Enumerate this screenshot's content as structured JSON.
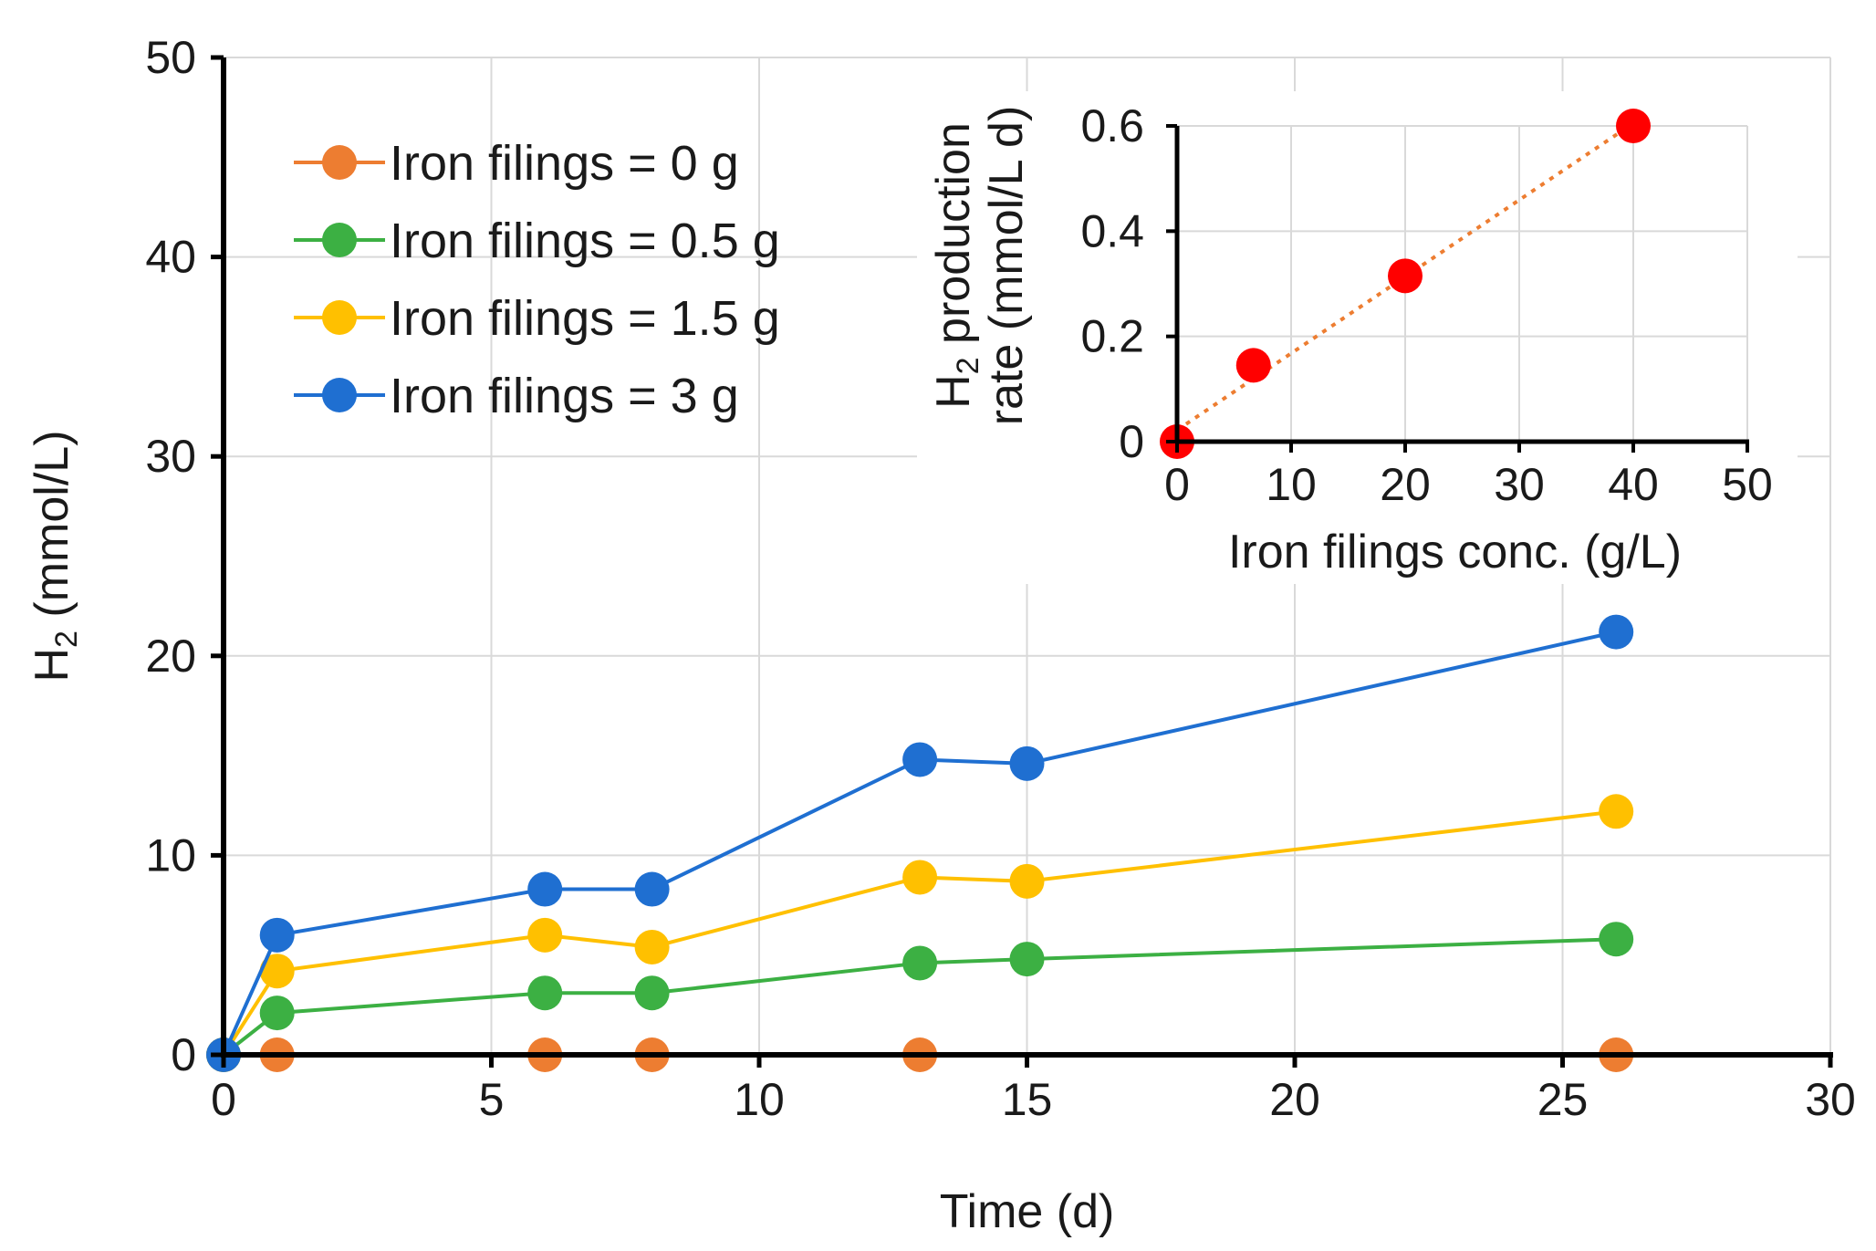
{
  "chart_data": [
    {
      "type": "line",
      "xlabel": "Time (d)",
      "ylabel": {
        "main": "H",
        "sub": "2",
        "rest": " (mmol/L)"
      },
      "xlim": [
        0,
        30
      ],
      "ylim": [
        0,
        50
      ],
      "xticks": [
        "0",
        "5",
        "10",
        "15",
        "20",
        "25",
        "30"
      ],
      "yticks": [
        "0",
        "10",
        "20",
        "30",
        "40",
        "50"
      ],
      "grid": true,
      "legend_position": "top-left",
      "x": [
        0,
        1,
        6,
        8,
        13,
        15,
        26
      ],
      "series": [
        {
          "name": "Iron filings = 0 g",
          "color": "#ED7D31",
          "values": [
            0,
            0,
            0,
            0,
            0,
            null,
            0
          ]
        },
        {
          "name": "Iron filings = 0.5 g",
          "color": "#3CB043",
          "values": [
            0,
            2.1,
            3.1,
            3.1,
            4.6,
            4.8,
            5.8
          ]
        },
        {
          "name": "Iron filings = 1.5 g",
          "color": "#FFC000",
          "values": [
            0,
            4.2,
            6.0,
            5.4,
            8.9,
            8.7,
            12.2
          ]
        },
        {
          "name": "Iron filings = 3 g",
          "color": "#1F6FD1",
          "values": [
            0,
            6.0,
            8.3,
            8.3,
            14.8,
            14.6,
            21.2
          ]
        }
      ]
    },
    {
      "type": "scatter",
      "inset": true,
      "xlabel": "Iron filings conc. (g/L)",
      "ylabel": {
        "line1_main": "H",
        "line1_sub": "2",
        "line1_rest": " production",
        "line2": "rate (mmol/L d)"
      },
      "xlim": [
        0,
        50
      ],
      "ylim": [
        0,
        0.6
      ],
      "xticks": [
        "0",
        "10",
        "20",
        "30",
        "40",
        "50"
      ],
      "yticks": [
        "0",
        "0.2",
        "0.4",
        "0.6"
      ],
      "grid": true,
      "point_color": "#FF0000",
      "trendline_color": "#ED7D31",
      "trendline": "linear",
      "x": [
        0,
        6.7,
        20,
        40
      ],
      "y": [
        0,
        0.145,
        0.315,
        0.6
      ]
    }
  ]
}
